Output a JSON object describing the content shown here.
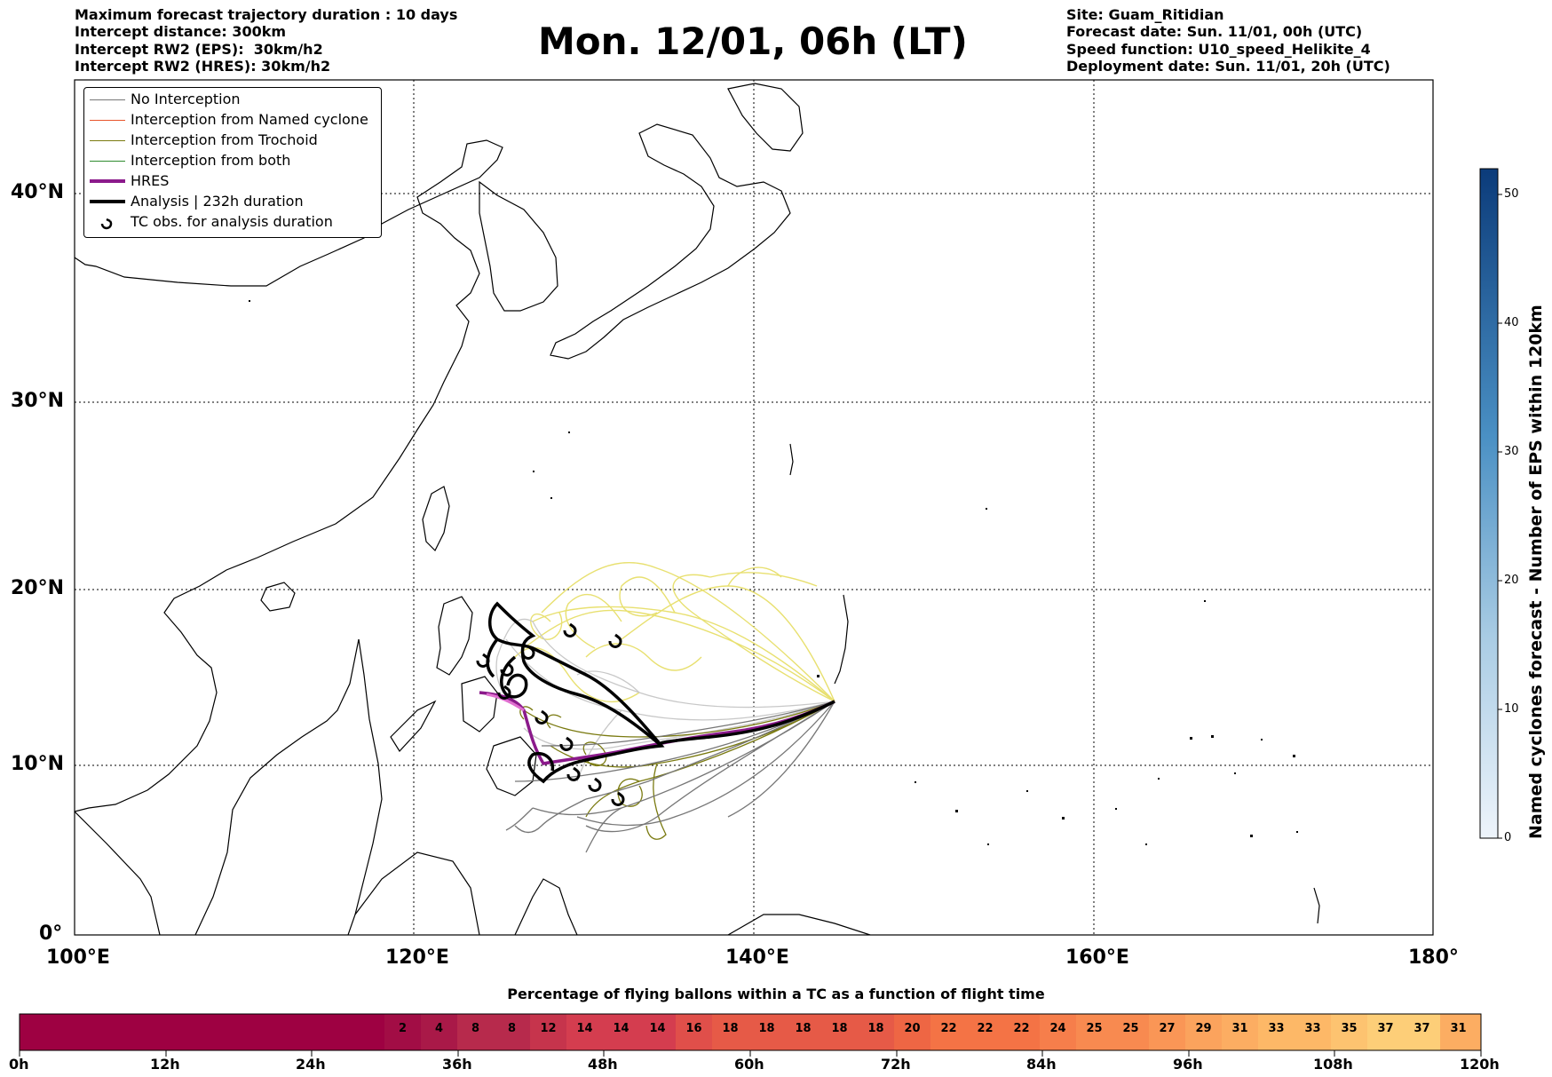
{
  "header": {
    "left_lines": [
      "Maximum forecast trajectory duration : 10 days",
      "Intercept distance: 300km",
      "Intercept RW2 (EPS):  30km/h2",
      "Intercept RW2 (HRES): 30km/h2"
    ],
    "title": "Mon. 12/01, 06h (LT)",
    "right_lines": [
      "Site: Guam_Ritidian",
      "Forecast date: Sun. 11/01, 00h (UTC)",
      "Speed function: U10_speed_Helikite_4",
      "Deployment date: Sun. 11/01, 20h (UTC)"
    ]
  },
  "map": {
    "lat_labels": [
      "40°N",
      "30°N",
      "20°N",
      "10°N",
      "0°"
    ],
    "lon_labels": [
      "100°E",
      "120°E",
      "140°E",
      "160°E",
      "180°"
    ],
    "colors": {
      "no_interception": "#777777",
      "named_cyclone": "#e8542a",
      "trochoid": "#7a7a10",
      "both": "#2e8b2e",
      "hres": "#8b1a8b",
      "analysis": "#000000",
      "eps_light": "#e8e070",
      "gray_light": "#c8c8c8"
    }
  },
  "legend": {
    "items": [
      {
        "label": "No Interception",
        "color": "#777777",
        "style": "thin"
      },
      {
        "label": "Interception from Named cyclone",
        "color": "#e8542a",
        "style": "thin"
      },
      {
        "label": "Interception from Trochoid",
        "color": "#7a7a10",
        "style": "thin"
      },
      {
        "label": "Interception from both",
        "color": "#2e8b2e",
        "style": "thin"
      },
      {
        "label": "HRES",
        "color": "#8b1a8b",
        "style": "thick"
      },
      {
        "label": "Analysis | 232h duration",
        "color": "#000000",
        "style": "thick"
      },
      {
        "label": "TC obs. for analysis duration",
        "color": "#000000",
        "style": "symbol"
      }
    ]
  },
  "colorbar": {
    "label": "Named cyclones forecast - Number of EPS within 120km",
    "ticks": [
      "0",
      "10",
      "20",
      "30",
      "40",
      "50"
    ],
    "min": 0,
    "max": 52
  },
  "bottom_bar": {
    "title": "Percentage of flying ballons within a TC as a function of flight time",
    "time_labels": [
      "0h",
      "12h",
      "24h",
      "36h",
      "48h",
      "60h",
      "72h",
      "84h",
      "96h",
      "108h",
      "120h"
    ],
    "values": [
      "2",
      "4",
      "8",
      "8",
      "12",
      "14",
      "14",
      "14",
      "16",
      "18",
      "18",
      "18",
      "18",
      "18",
      "20",
      "22",
      "22",
      "22",
      "24",
      "25",
      "25",
      "27",
      "29",
      "31",
      "33",
      "33",
      "35",
      "37",
      "37",
      "31"
    ]
  }
}
